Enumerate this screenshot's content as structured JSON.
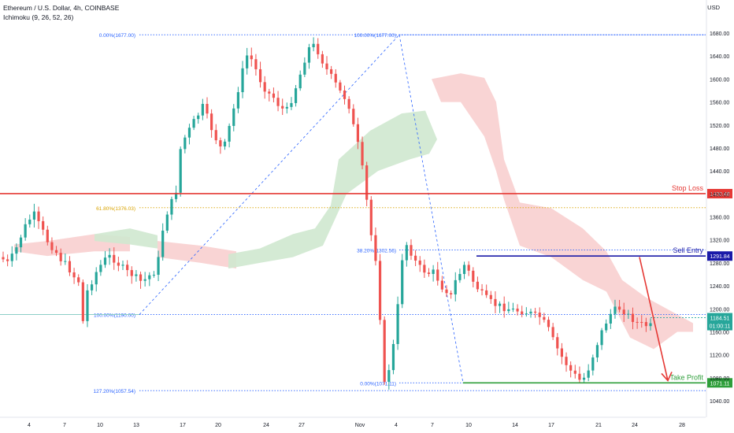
{
  "header": {
    "symbol_line": "Ethereum / U.S. Dollar, 4h, COINBASE",
    "indicator_line": "Ichimoku (9, 26, 52, 26)",
    "currency": "USD"
  },
  "colors": {
    "stop_loss": "#e53935",
    "sell_entry": "#1a1aa8",
    "take_profit": "#2e9e3a",
    "fib": "#2962ff",
    "fib_618": "#d9a300",
    "cloud_bull": "#cfe8cf",
    "cloud_bear": "#f8cfcf",
    "candle_up": "#26a69a",
    "candle_down": "#ef5350",
    "arrow": "#e53935",
    "price_tag": "#26a69a"
  },
  "chart_data": {
    "type": "candlestick",
    "y_axis": {
      "ticks": [
        1680,
        1640,
        1600,
        1560,
        1520,
        1480,
        1440,
        1400,
        1360,
        1320,
        1280,
        1240,
        1200,
        1160,
        1120,
        1080,
        1040
      ],
      "tick_labels": [
        "1680.00",
        "1640.00",
        "1600.00",
        "1560.00",
        "1520.00",
        "1480.00",
        "1440.00",
        "1400.00",
        "1360.00",
        "1320.00",
        "1280.00",
        "1240.00",
        "1200.00",
        "1160.00",
        "1120.00",
        "1080.00",
        "1040.00"
      ],
      "range": [
        1025,
        1700
      ]
    },
    "x_axis": {
      "tick_labels": [
        "4",
        "7",
        "10",
        "13",
        "17",
        "20",
        "24",
        "27",
        "Nov",
        "4",
        "7",
        "10",
        "14",
        "17",
        "21",
        "24",
        "28"
      ]
    },
    "levels": [
      {
        "label": "Stop Loss",
        "price": 1400.48,
        "tag": "1400.48",
        "color": "#e53935"
      },
      {
        "label": "Sell Entry",
        "price": 1291.84,
        "tag": "1291.84",
        "color": "#1a1aa8"
      },
      {
        "label": "Take Profit",
        "price": 1071.11,
        "tag": "1071.11",
        "color": "#2e9e3a"
      }
    ],
    "current_price": {
      "price": 1184.51,
      "tag": "1184.51",
      "countdown": "01:00:11"
    },
    "fib_retracement_1": [
      {
        "text": "0.00%(1677.00)",
        "price": 1677.0
      },
      {
        "text": "61.80%(1376.03)",
        "price": 1376.03
      },
      {
        "text": "100.00%(1190.00)",
        "price": 1190.0
      },
      {
        "text": "127.20%(1057.54)",
        "price": 1057.54
      }
    ],
    "fib_retracement_2": [
      {
        "text": "100.00%(1677.00)",
        "price": 1677.0
      },
      {
        "text": "38.20%(1302.56)",
        "price": 1302.56
      },
      {
        "text": "0.00%(1071.11)",
        "price": 1071.11
      }
    ],
    "path_high": [
      1300,
      1294,
      1305,
      1320,
      1340,
      1358,
      1370,
      1378,
      1362,
      1348,
      1332,
      1322,
      1312,
      1300,
      1292,
      1282,
      1270,
      1262,
      1192,
      1245,
      1262,
      1278,
      1290,
      1300,
      1305,
      1300,
      1292,
      1285,
      1278,
      1274,
      1268,
      1262,
      1265,
      1272,
      1278,
      1300,
      1352,
      1382,
      1400,
      1420,
      1492,
      1512,
      1526,
      1540,
      1552,
      1566,
      1548,
      1528,
      1510,
      1495,
      1500,
      1530,
      1562,
      1596,
      1628,
      1655,
      1648,
      1630,
      1612,
      1598,
      1588,
      1582,
      1570,
      1562,
      1560,
      1578,
      1600,
      1622,
      1648,
      1668,
      1672,
      1662,
      1645,
      1630,
      1618,
      1605,
      1592,
      1582,
      1567,
      1532,
      1500,
      1458,
      1402,
      1342,
      1302,
      1200,
      1082,
      1110,
      1150,
      1218,
      1302,
      1326,
      1312,
      1296,
      1286,
      1280,
      1276,
      1278,
      1266,
      1252,
      1246,
      1236,
      1262,
      1276,
      1290,
      1278,
      1262,
      1250,
      1240,
      1232,
      1226,
      1221,
      1219,
      1216,
      1214,
      1212,
      1211,
      1210,
      1208,
      1206,
      1202,
      1200,
      1190,
      1178,
      1160,
      1144,
      1130,
      1118,
      1106,
      1098,
      1090,
      1094,
      1110,
      1132,
      1154,
      1174,
      1191,
      1205,
      1212,
      1215,
      1210,
      1202,
      1196,
      1190,
      1187,
      1185,
      1184
    ]
  }
}
